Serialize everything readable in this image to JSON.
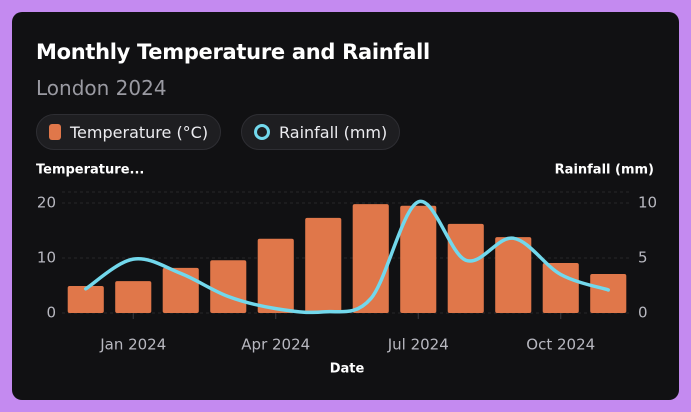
{
  "chart_data": {
    "type": "bar-line",
    "title": "Monthly Temperature and Rainfall",
    "subtitle": "London 2024",
    "categories": [
      null,
      "Jan 2024",
      null,
      null,
      "Apr 2024",
      null,
      null,
      "Jul 2024",
      null,
      null,
      "Oct 2024",
      null
    ],
    "x_label": "Date",
    "y_label": "Temperature...",
    "y2_label": "Rainfall (mm)",
    "series": [
      {
        "name": "Temperature (°C)",
        "color": "#e0774a",
        "type": "bar",
        "values": [
          4.9,
          5.8,
          8.2,
          9.6,
          13.5,
          17.3,
          19.8,
          19.5,
          16.2,
          13.8,
          9.1,
          7.1
        ]
      },
      {
        "name": "Rainfall (mm)",
        "color": "#72d8ec",
        "type": "line",
        "axis": "y2",
        "values": [
          2.2,
          4.9,
          3.6,
          1.5,
          0.4,
          0.1,
          1.3,
          10.1,
          4.8,
          6.8,
          3.5,
          2.1
        ]
      }
    ],
    "ylim": [
      0,
      20
    ],
    "yticks": [
      0,
      10,
      20
    ],
    "y2lim": [
      0,
      10
    ],
    "y2ticks": [
      0,
      5,
      10
    ],
    "grid": true
  }
}
